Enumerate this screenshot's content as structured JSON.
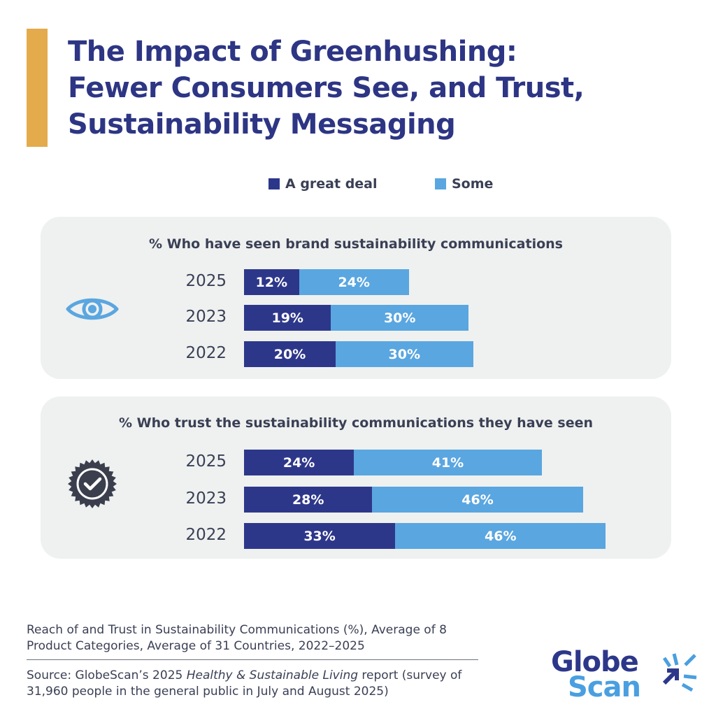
{
  "title": {
    "lines": [
      "The Impact of Greenhushing:",
      "Fewer Consumers See, and Trust,",
      "Sustainability Messaging"
    ]
  },
  "colors": {
    "accent": "#e3ab4b",
    "great_deal": "#2d378a",
    "some": "#5aa6e0",
    "title": "#2d3584",
    "panel_bg": "#eef1ef"
  },
  "legend": [
    {
      "label": "A great deal",
      "color": "#2d378a"
    },
    {
      "label": "Some",
      "color": "#5aa6e0"
    }
  ],
  "chart_data": [
    {
      "type": "bar",
      "orientation": "horizontal",
      "stacked": true,
      "title": "% Who have seen brand sustainability communications",
      "icon": "eye-icon",
      "categories": [
        "2025",
        "2023",
        "2022"
      ],
      "series": [
        {
          "name": "A great deal",
          "values": [
            12,
            19,
            20
          ],
          "labels": [
            "12%",
            "19%",
            "20%"
          ]
        },
        {
          "name": "Some",
          "values": [
            24,
            30,
            30
          ],
          "labels": [
            "24%",
            "30%",
            "30%"
          ]
        }
      ],
      "xlim": [
        0,
        80
      ]
    },
    {
      "type": "bar",
      "orientation": "horizontal",
      "stacked": true,
      "title": "% Who trust the sustainability communications they have seen",
      "icon": "verified-badge-icon",
      "categories": [
        "2025",
        "2023",
        "2022"
      ],
      "series": [
        {
          "name": "A great deal",
          "values": [
            24,
            28,
            33
          ],
          "labels": [
            "24%",
            "28%",
            "33%"
          ]
        },
        {
          "name": "Some",
          "values": [
            41,
            46,
            46
          ],
          "labels": [
            "41%",
            "46%",
            "46%"
          ]
        }
      ],
      "xlim": [
        0,
        80
      ]
    }
  ],
  "footer": {
    "caption": "Reach of and Trust in Sustainability Communications (%), Average of 8 Product Categories, Average of 31 Countries, 2022–2025",
    "source_prefix": "Source: GlobeScan’s 2025 ",
    "source_italic": "Healthy & Sustainable Living",
    "source_suffix": " report (survey of 31,960 people in the general public in July and August 2025)"
  },
  "logo": {
    "word1": "Globe",
    "word2": "Scan",
    "color1": "#2d378a",
    "color2": "#4a9fe0"
  }
}
